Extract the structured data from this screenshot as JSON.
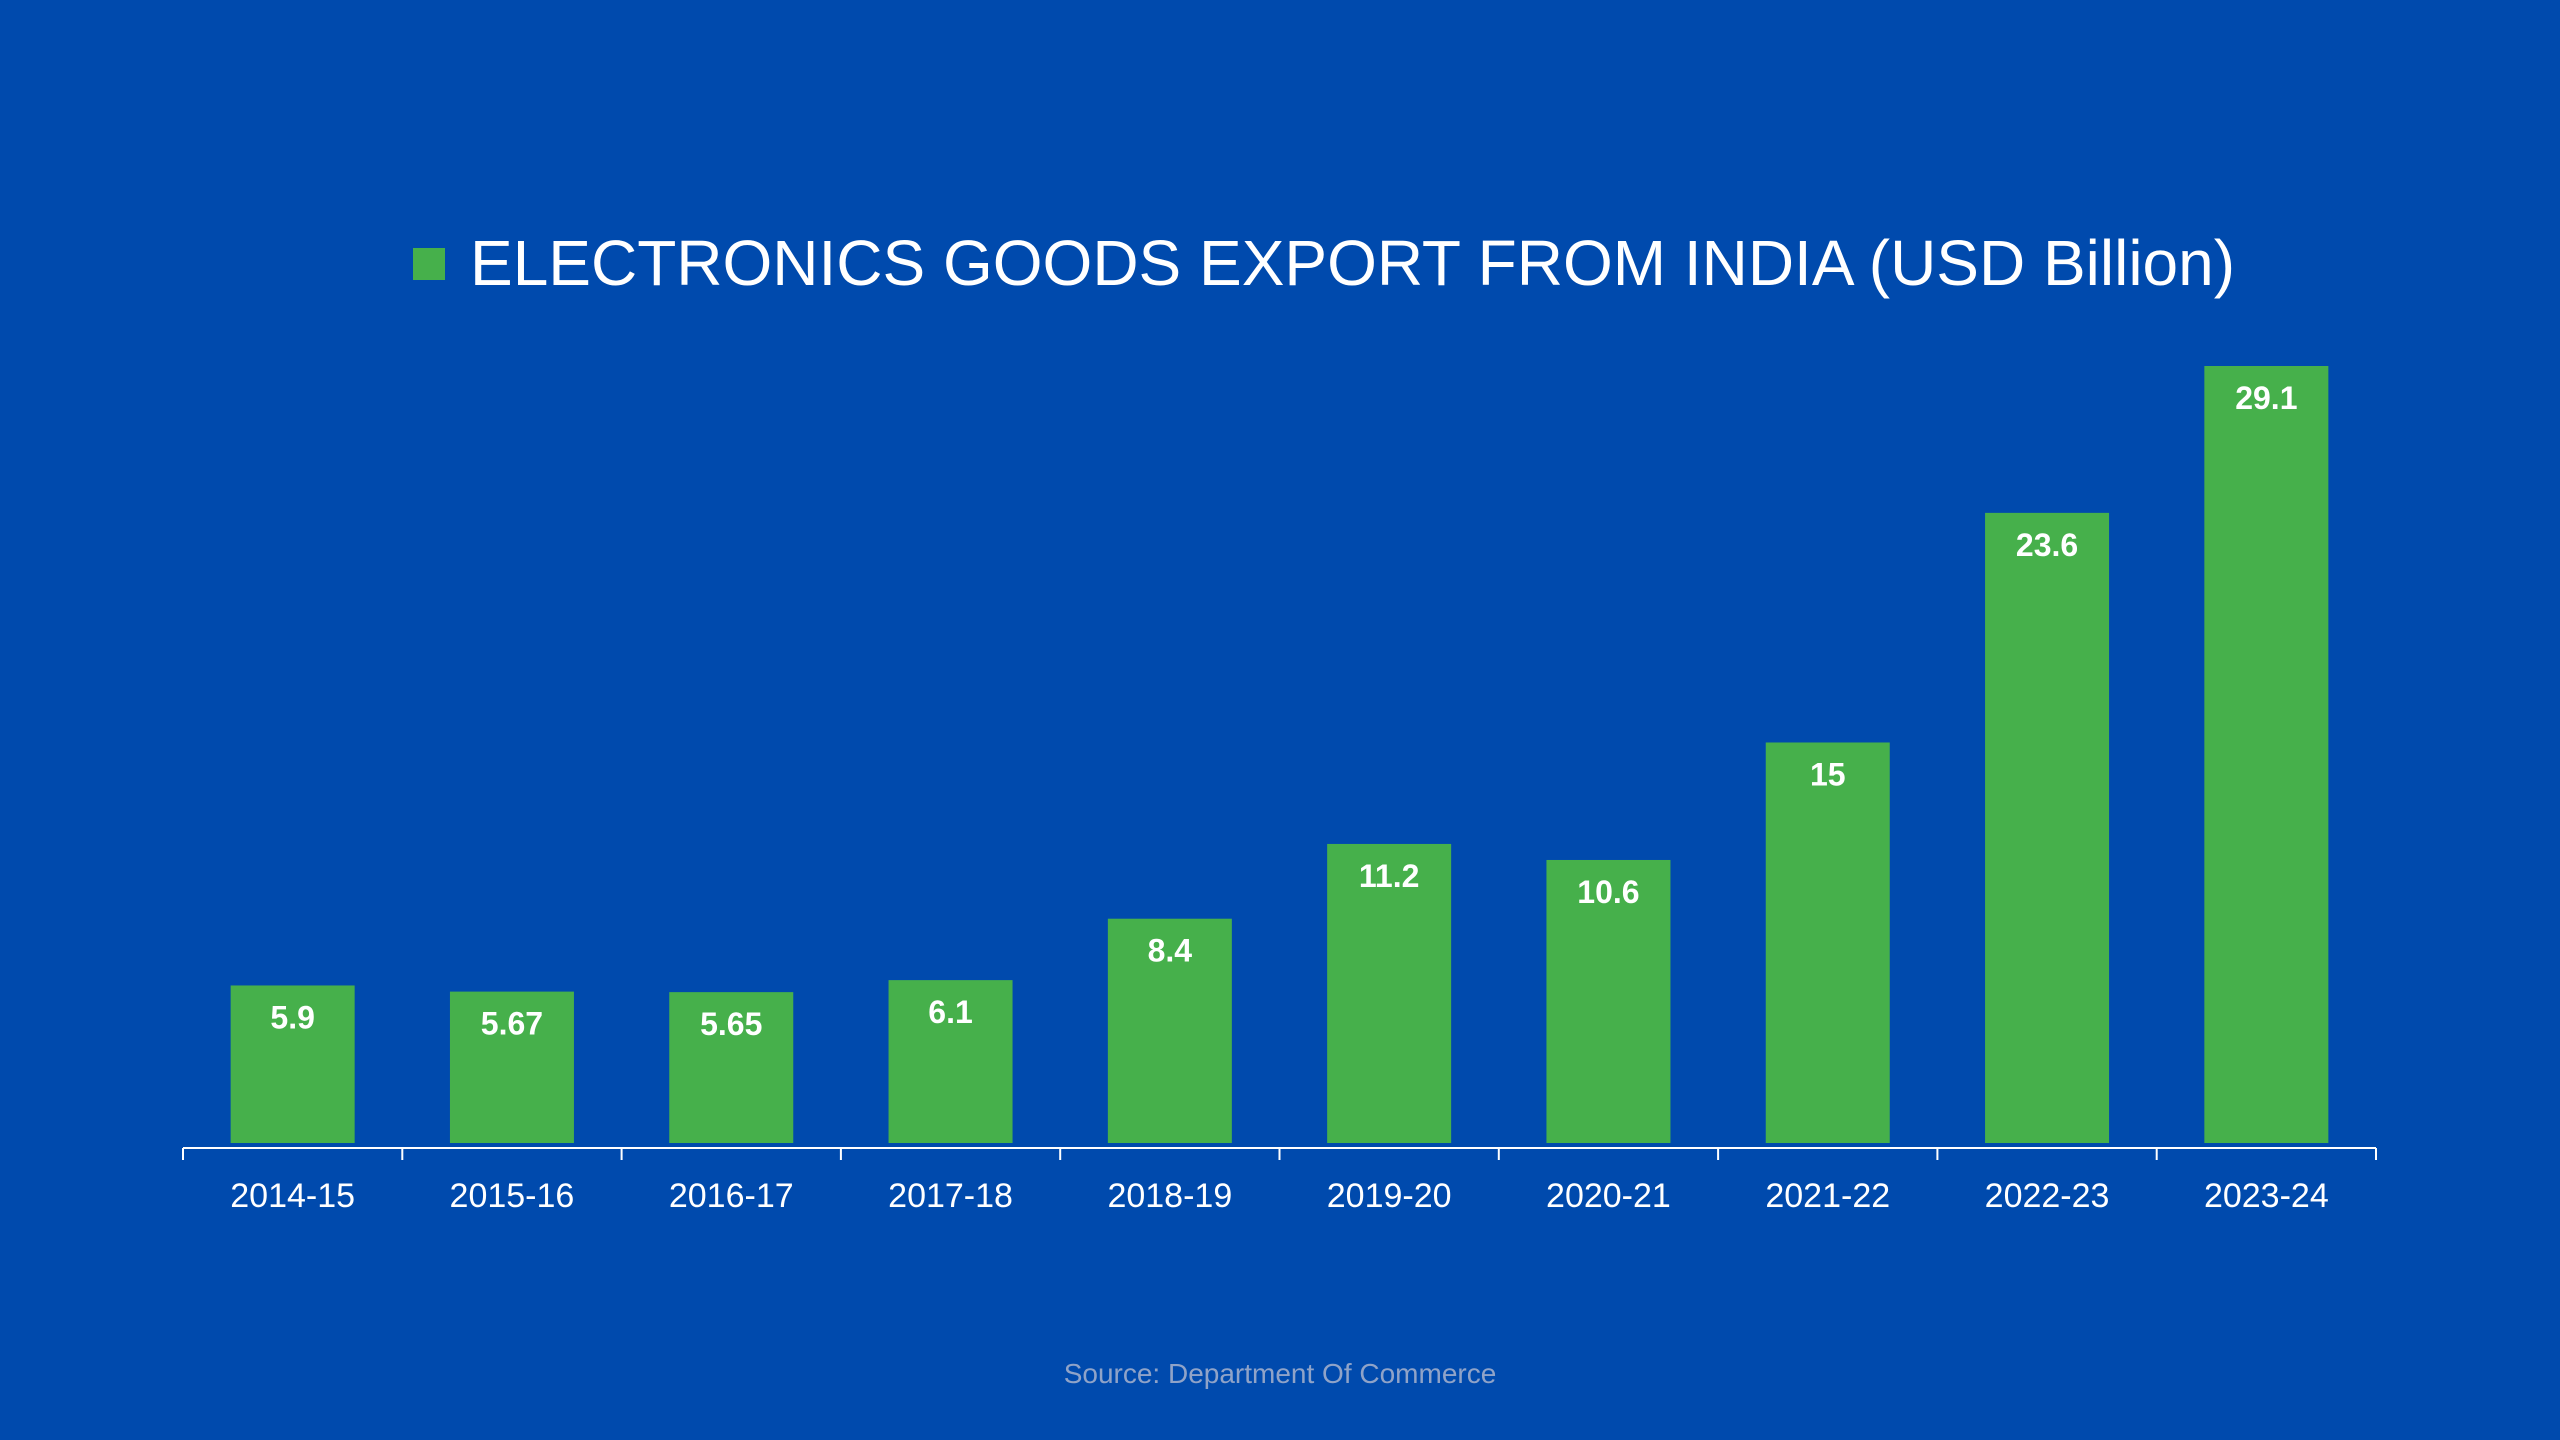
{
  "chart_data": {
    "type": "bar",
    "categories": [
      "2014-15",
      "2015-16",
      "2016-17",
      "2017-18",
      "2018-19",
      "2019-20",
      "2020-21",
      "2021-22",
      "2022-23",
      "2023-24"
    ],
    "series": [
      {
        "name": "ELECTRONICS GOODS EXPORT FROM INDIA (USD Billion)",
        "values": [
          5.9,
          5.67,
          5.65,
          6.1,
          8.4,
          11.2,
          10.6,
          15,
          23.6,
          29.1
        ],
        "labels": [
          "5.9",
          "5.67",
          "5.65",
          "6.1",
          "8.4",
          "11.2",
          "10.6",
          "15",
          "23.6",
          "29.1"
        ],
        "color": "#46b04b"
      }
    ],
    "ylim": [
      0,
      29.1
    ],
    "legend": "top-center",
    "grid": false
  },
  "colors": {
    "background": "#004aad",
    "bar": "#46b04b",
    "axis": "#ffffff",
    "source_text": "#8fa3c8"
  },
  "source": "Source: Department Of Commerce"
}
